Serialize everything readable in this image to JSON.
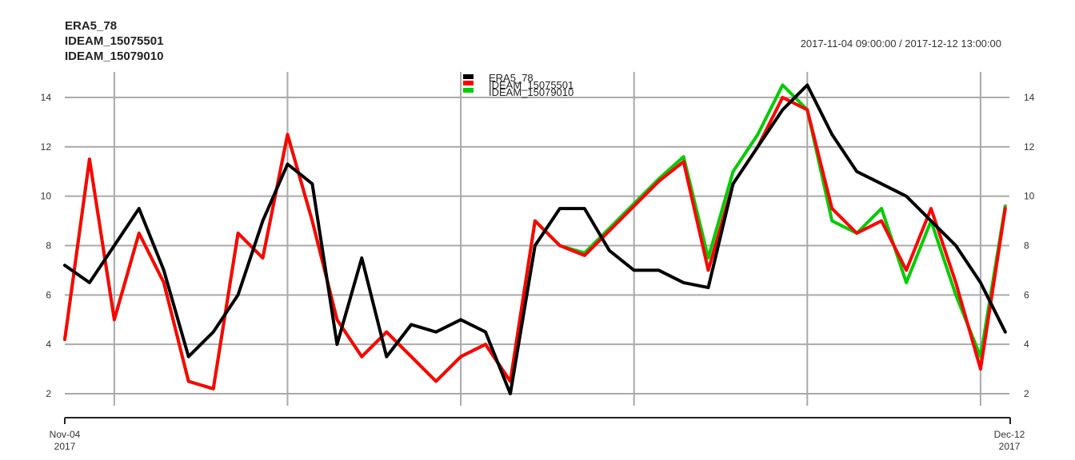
{
  "chart_data": {
    "type": "line",
    "title_lines": [
      "ERA5_78",
      "IDEAM_15075501",
      "IDEAM_15079010"
    ],
    "date_range": "2017-11-04 09:00:00 / 2017-12-12 13:00:00",
    "xlim": [
      "2017-11-04 09:00",
      "2017-12-12 13:00"
    ],
    "ylim": [
      1.4,
      15.0
    ],
    "y_ticks": [
      2,
      4,
      6,
      8,
      10,
      12,
      14
    ],
    "x_tick_labels": [
      {
        "line1": "Nov-04",
        "line2": "2017"
      },
      {
        "line1": "Dec-12",
        "line2": "2017"
      }
    ],
    "grid": true,
    "legend": {
      "placement": "top-center",
      "entries": [
        "ERA5_78",
        "IDEAM_15075501",
        "IDEAM_15079010"
      ]
    },
    "series": [
      {
        "name": "ERA5_78",
        "color": "#000000",
        "x": [
          "2017-11-04 09:00",
          "2017-11-05 09:00",
          "2017-11-06 09:00",
          "2017-11-07 09:00",
          "2017-11-08 09:00",
          "2017-11-09 09:00",
          "2017-11-10 09:00",
          "2017-11-11 09:00",
          "2017-11-12 09:00",
          "2017-11-13 09:00",
          "2017-11-14 09:00",
          "2017-11-15 09:00",
          "2017-11-16 09:00",
          "2017-11-17 09:00",
          "2017-11-18 09:00",
          "2017-11-19 09:00",
          "2017-11-20 09:00",
          "2017-11-21 09:00",
          "2017-11-22 09:00",
          "2017-11-23 09:00",
          "2017-11-24 09:00",
          "2017-11-25 09:00",
          "2017-11-26 09:00",
          "2017-11-27 09:00",
          "2017-11-28 09:00",
          "2017-11-29 09:00",
          "2017-11-30 09:00",
          "2017-12-01 09:00",
          "2017-12-02 09:00",
          "2017-12-03 09:00",
          "2017-12-04 09:00",
          "2017-12-05 09:00",
          "2017-12-06 09:00",
          "2017-12-07 09:00",
          "2017-12-08 09:00",
          "2017-12-09 09:00",
          "2017-12-10 09:00",
          "2017-12-11 09:00",
          "2017-12-12 09:00"
        ],
        "values": [
          7.2,
          6.5,
          8.0,
          9.5,
          7.0,
          3.5,
          4.5,
          6.0,
          9.0,
          11.3,
          10.5,
          4.0,
          7.5,
          3.5,
          4.8,
          4.5,
          5.0,
          4.5,
          2.0,
          8.0,
          9.5,
          9.5,
          7.8,
          7.0,
          7.0,
          6.5,
          6.3,
          10.5,
          12.0,
          13.5,
          14.5,
          12.5,
          11.0,
          10.5,
          10.0,
          9.0,
          8.0,
          6.5,
          4.5
        ]
      },
      {
        "name": "IDEAM_15075501",
        "color": "#ff0000",
        "x": [
          "2017-11-04 09:00",
          "2017-11-05 09:00",
          "2017-11-06 09:00",
          "2017-11-07 09:00",
          "2017-11-08 09:00",
          "2017-11-09 09:00",
          "2017-11-10 09:00",
          "2017-11-11 09:00",
          "2017-11-12 09:00",
          "2017-11-13 09:00",
          "2017-11-14 09:00",
          "2017-11-15 09:00",
          "2017-11-16 09:00",
          "2017-11-17 09:00",
          "2017-11-18 09:00",
          "2017-11-19 09:00",
          "2017-11-20 09:00",
          "2017-11-21 09:00",
          "2017-11-22 09:00",
          "2017-11-23 09:00",
          "2017-11-24 09:00",
          "2017-11-25 09:00",
          "2017-11-26 09:00",
          "2017-11-27 09:00",
          "2017-11-28 09:00",
          "2017-11-29 09:00",
          "2017-11-30 09:00",
          "2017-12-01 09:00",
          "2017-12-02 09:00",
          "2017-12-03 09:00",
          "2017-12-04 09:00",
          "2017-12-05 09:00",
          "2017-12-06 09:00",
          "2017-12-07 09:00",
          "2017-12-08 09:00",
          "2017-12-09 09:00",
          "2017-12-10 09:00",
          "2017-12-11 09:00",
          "2017-12-12 09:00"
        ],
        "values": [
          4.2,
          11.5,
          5.0,
          8.5,
          6.5,
          2.5,
          2.2,
          8.5,
          7.5,
          12.5,
          9.0,
          5.0,
          3.5,
          4.5,
          3.5,
          2.5,
          3.5,
          4.0,
          2.5,
          9.0,
          8.0,
          7.6,
          8.6,
          9.6,
          10.6,
          11.4,
          7.0,
          10.5,
          12.0,
          14.0,
          13.5,
          9.5,
          8.5,
          9.0,
          7.0,
          9.5,
          6.5,
          3.0,
          9.5
        ]
      },
      {
        "name": "IDEAM_15079010",
        "color": "#00cc00",
        "x": [
          "2017-11-04 09:00",
          "2017-11-05 09:00",
          "2017-11-06 09:00",
          "2017-11-07 09:00",
          "2017-11-08 09:00",
          "2017-11-09 09:00",
          "2017-11-10 09:00",
          "2017-11-11 09:00",
          "2017-11-12 09:00",
          "2017-11-13 09:00",
          "2017-11-14 09:00",
          "2017-11-15 09:00",
          "2017-11-16 09:00",
          "2017-11-17 09:00",
          "2017-11-18 09:00",
          "2017-11-19 09:00",
          "2017-11-20 09:00",
          "2017-11-21 09:00",
          "2017-11-22 09:00",
          "2017-11-23 09:00",
          "2017-11-24 09:00",
          "2017-11-25 09:00",
          "2017-11-26 09:00",
          "2017-11-27 09:00",
          "2017-11-28 09:00",
          "2017-11-29 09:00",
          "2017-11-30 09:00",
          "2017-12-01 09:00",
          "2017-12-02 09:00",
          "2017-12-03 09:00",
          "2017-12-04 09:00",
          "2017-12-05 09:00",
          "2017-12-06 09:00",
          "2017-12-07 09:00",
          "2017-12-08 09:00",
          "2017-12-09 09:00",
          "2017-12-10 09:00",
          "2017-12-11 09:00",
          "2017-12-12 09:00"
        ],
        "values": [
          4.2,
          11.5,
          5.0,
          8.5,
          6.5,
          2.5,
          2.2,
          8.5,
          7.5,
          12.5,
          9.0,
          5.0,
          3.5,
          4.5,
          3.5,
          2.5,
          3.5,
          4.0,
          2.5,
          9.0,
          8.0,
          7.7,
          8.7,
          9.7,
          10.7,
          11.6,
          7.5,
          11.0,
          12.5,
          14.5,
          13.5,
          9.0,
          8.5,
          9.5,
          6.5,
          9.0,
          6.0,
          3.5,
          9.6
        ]
      }
    ]
  }
}
